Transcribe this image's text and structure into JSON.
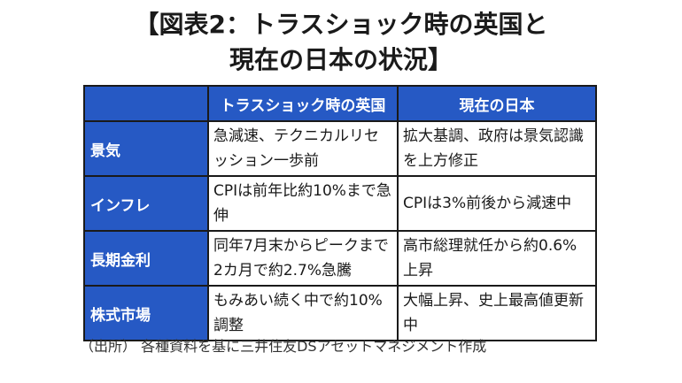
{
  "title": {
    "line1": "【図表2：トラスショック時の英国と",
    "line2": "現在の日本の状況】"
  },
  "table": {
    "headers": [
      "",
      "トラスショック時の英国",
      "現在の日本"
    ],
    "rows": [
      {
        "label": "景気",
        "uk": "急減速、テクニカルリセッション一歩前",
        "jp": "拡大基調、政府は景気認識を上方修正"
      },
      {
        "label": "インフレ",
        "uk": "CPIは前年比約10%まで急伸",
        "jp": "CPIは3%前後から減速中"
      },
      {
        "label": "長期金利",
        "uk": "同年7月末からピークまで2カ月で約2.7%急騰",
        "jp": "高市総理就任から約0.6%上昇"
      },
      {
        "label": "株式市場",
        "uk": "もみあい続く中で約10%調整",
        "jp": "大幅上昇、史上最高値更新中"
      }
    ]
  },
  "source": "（出所） 各種資料を基に三井住友DSアセットマネジメント作成",
  "colors": {
    "header_bg": "#2659c4",
    "header_text": "#ffffff",
    "border": "#1a1a1a"
  }
}
